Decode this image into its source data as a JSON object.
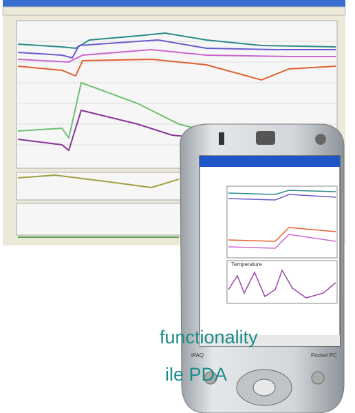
{
  "caption": {
    "line1": "functionality",
    "line2": "ile PDA"
  },
  "pda": {
    "chart_label": "Temperature",
    "brand": "iPAQ",
    "platform": "Pocket PC"
  }
}
